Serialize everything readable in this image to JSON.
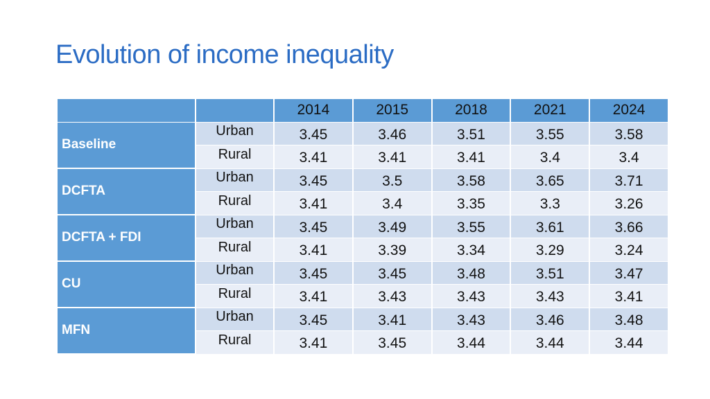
{
  "title": "Evolution of income inequality",
  "table": {
    "columns": [
      "",
      "",
      "2014",
      "2015",
      "2018",
      "2021",
      "2024"
    ],
    "groups": [
      {
        "name": "Baseline",
        "rows": [
          {
            "label": "Urban",
            "values": [
              "3.45",
              "3.46",
              "3.51",
              "3.55",
              "3.58"
            ]
          },
          {
            "label": "Rural",
            "values": [
              "3.41",
              "3.41",
              "3.41",
              "3.4",
              "3.4"
            ]
          }
        ]
      },
      {
        "name": "DCFTA",
        "rows": [
          {
            "label": "Urban",
            "values": [
              "3.45",
              "3.5",
              "3.58",
              "3.65",
              "3.71"
            ]
          },
          {
            "label": "Rural",
            "values": [
              "3.41",
              "3.4",
              "3.35",
              "3.3",
              "3.26"
            ]
          }
        ]
      },
      {
        "name": "DCFTA + FDI",
        "rows": [
          {
            "label": "Urban",
            "values": [
              "3.45",
              "3.49",
              "3.55",
              "3.61",
              "3.66"
            ]
          },
          {
            "label": "Rural",
            "values": [
              "3.41",
              "3.39",
              "3.34",
              "3.29",
              "3.24"
            ]
          }
        ]
      },
      {
        "name": "CU",
        "rows": [
          {
            "label": "Urban",
            "values": [
              "3.45",
              "3.45",
              "3.48",
              "3.51",
              "3.47"
            ]
          },
          {
            "label": "Rural",
            "values": [
              "3.41",
              "3.43",
              "3.43",
              "3.43",
              "3.41"
            ]
          }
        ]
      },
      {
        "name": "MFN",
        "rows": [
          {
            "label": "Urban",
            "values": [
              "3.45",
              "3.41",
              "3.43",
              "3.46",
              "3.48"
            ]
          },
          {
            "label": "Rural",
            "values": [
              "3.41",
              "3.45",
              "3.44",
              "3.44",
              "3.44"
            ]
          }
        ]
      }
    ]
  },
  "colors": {
    "title": "#2b6cc4",
    "header": "#5b9bd5",
    "band_dark": "#cfdcee",
    "band_light": "#e9eef7"
  }
}
